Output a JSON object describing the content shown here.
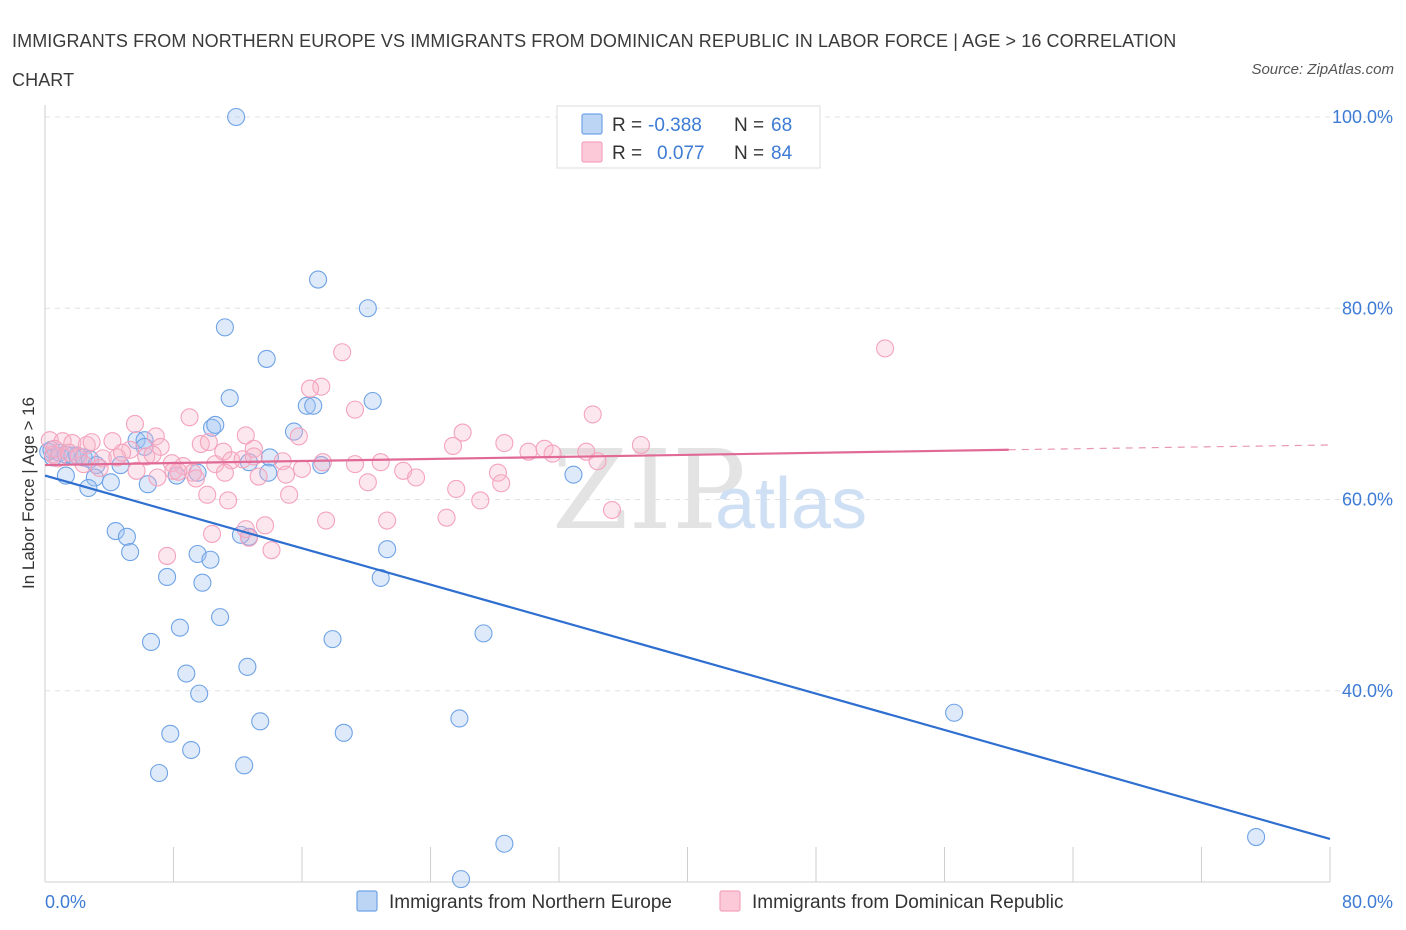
{
  "title": "IMMIGRANTS FROM NORTHERN EUROPE VS IMMIGRANTS FROM DOMINICAN REPUBLIC IN LABOR FORCE | AGE > 16 CORRELATION CHART",
  "source": "Source: ZipAtlas.com",
  "watermark": {
    "zip": "ZIP",
    "atlas": "atlas"
  },
  "colors": {
    "blue": "#6fa3e6",
    "blue_line": "#2f6fd0",
    "pink": "#f4a3bd",
    "pink_line": "#e06a95",
    "grid": "#e2e2e2",
    "axis_text": "#3d7bd4"
  },
  "legend": {
    "rows": [
      {
        "r_label": "R =",
        "r_value": "-0.388",
        "n_label": "N =",
        "n_value": "68"
      },
      {
        "r_label": "R =",
        "r_value": "0.077",
        "n_label": "N =",
        "n_value": "84"
      }
    ]
  },
  "chart_data": {
    "type": "scatter",
    "title": "IMMIGRANTS FROM NORTHERN EUROPE VS IMMIGRANTS FROM DOMINICAN REPUBLIC IN LABOR FORCE | AGE > 16 CORRELATION CHART",
    "xlabel": "",
    "ylabel": "In Labor Force | Age > 16",
    "xlim": [
      0,
      80
    ],
    "ylim": [
      20,
      100
    ],
    "x_tick_labels": [
      "0.0%",
      "80.0%"
    ],
    "y_ticks": [
      40,
      60,
      80,
      100
    ],
    "y_tick_labels": [
      "40.0%",
      "60.0%",
      "80.0%",
      "100.0%"
    ],
    "grid": true,
    "legend_position": "top-center",
    "series": [
      {
        "name": "Immigrants from Northern Europe",
        "color": "#6fa3e6",
        "trend": {
          "x": [
            0,
            80
          ],
          "y": [
            62.5,
            24.5
          ]
        },
        "points": [
          [
            11.9,
            100
          ],
          [
            17,
            83
          ],
          [
            20.1,
            80
          ],
          [
            11.2,
            78
          ],
          [
            13.8,
            74.7
          ],
          [
            11.5,
            70.6
          ],
          [
            16.3,
            69.8
          ],
          [
            16.7,
            69.8
          ],
          [
            20.4,
            70.3
          ],
          [
            10.4,
            67.5
          ],
          [
            10.6,
            67.8
          ],
          [
            15.5,
            67.1
          ],
          [
            5.7,
            66.2
          ],
          [
            6.2,
            66.2
          ],
          [
            6.2,
            65.5
          ],
          [
            0.2,
            65
          ],
          [
            0.4,
            65.2
          ],
          [
            0.5,
            64.4
          ],
          [
            0.9,
            64.9
          ],
          [
            1.3,
            64.7
          ],
          [
            1.7,
            64.6
          ],
          [
            2.0,
            64.6
          ],
          [
            2.4,
            64.4
          ],
          [
            2.8,
            64.2
          ],
          [
            3.2,
            63.6
          ],
          [
            4.7,
            63.6
          ],
          [
            12.7,
            63.9
          ],
          [
            14,
            64.4
          ],
          [
            17.2,
            63.6
          ],
          [
            13.9,
            62.8
          ],
          [
            1.3,
            62.5
          ],
          [
            3.1,
            62.3
          ],
          [
            4.1,
            61.8
          ],
          [
            6.4,
            61.6
          ],
          [
            2.7,
            61.2
          ],
          [
            8.2,
            62.5
          ],
          [
            9.5,
            62.8
          ],
          [
            32.9,
            62.6
          ],
          [
            4.4,
            56.7
          ],
          [
            5.1,
            56.1
          ],
          [
            12.7,
            56.1
          ],
          [
            5.3,
            54.5
          ],
          [
            9.5,
            54.3
          ],
          [
            10.3,
            53.7
          ],
          [
            21.3,
            54.8
          ],
          [
            7.6,
            51.9
          ],
          [
            9.8,
            51.3
          ],
          [
            20.9,
            51.8
          ],
          [
            10.9,
            47.7
          ],
          [
            8.4,
            46.6
          ],
          [
            6.6,
            45.1
          ],
          [
            17.9,
            45.4
          ],
          [
            27.3,
            46
          ],
          [
            8.8,
            41.8
          ],
          [
            12.6,
            42.5
          ],
          [
            9.6,
            39.7
          ],
          [
            7.8,
            35.5
          ],
          [
            13.4,
            36.8
          ],
          [
            18.6,
            35.6
          ],
          [
            25.8,
            37.1
          ],
          [
            9.1,
            33.8
          ],
          [
            7.1,
            31.4
          ],
          [
            12.4,
            32.2
          ],
          [
            56.6,
            37.7
          ],
          [
            28.6,
            24
          ],
          [
            75.4,
            24.7
          ],
          [
            25.9,
            20.3
          ],
          [
            12.2,
            56.3
          ]
        ]
      },
      {
        "name": "Immigrants from Dominican Republic",
        "color": "#f4a3bd",
        "trend": {
          "x": [
            0,
            60
          ],
          "y": [
            63.6,
            65.2
          ]
        },
        "dashed_extension": {
          "x": [
            60,
            80
          ],
          "y": [
            65.2,
            65.7
          ]
        },
        "points": [
          [
            52.3,
            75.8
          ],
          [
            18.5,
            75.4
          ],
          [
            17.2,
            71.8
          ],
          [
            16.5,
            71.6
          ],
          [
            19.3,
            69.4
          ],
          [
            34.1,
            68.9
          ],
          [
            9,
            68.6
          ],
          [
            5.6,
            67.9
          ],
          [
            26.0,
            67
          ],
          [
            6.9,
            66.6
          ],
          [
            12.5,
            66.7
          ],
          [
            15.8,
            66.6
          ],
          [
            0.3,
            66.2
          ],
          [
            1.1,
            66.1
          ],
          [
            1.7,
            65.9
          ],
          [
            2.6,
            65.7
          ],
          [
            2.9,
            66
          ],
          [
            4.2,
            66.1
          ],
          [
            5.3,
            65.2
          ],
          [
            7.2,
            65.5
          ],
          [
            9.7,
            65.8
          ],
          [
            10.2,
            66
          ],
          [
            11.1,
            65
          ],
          [
            13.0,
            65.3
          ],
          [
            25.4,
            65.6
          ],
          [
            28.6,
            65.9
          ],
          [
            30.1,
            65
          ],
          [
            31.1,
            65.3
          ],
          [
            33.7,
            65
          ],
          [
            37.1,
            65.7
          ],
          [
            0.5,
            64.7
          ],
          [
            0.8,
            64.3
          ],
          [
            1.5,
            64.9
          ],
          [
            2.1,
            64.5
          ],
          [
            3.6,
            64.3
          ],
          [
            4.5,
            64.4
          ],
          [
            6.3,
            64.5
          ],
          [
            7.9,
            63.8
          ],
          [
            8.6,
            63.5
          ],
          [
            10.6,
            63.7
          ],
          [
            11.6,
            64.1
          ],
          [
            12.3,
            64.2
          ],
          [
            14.8,
            64
          ],
          [
            17.3,
            63.9
          ],
          [
            19.3,
            63.7
          ],
          [
            20.9,
            63.9
          ],
          [
            34.4,
            64.0
          ],
          [
            3.4,
            63.3
          ],
          [
            5.7,
            63.0
          ],
          [
            8.0,
            63.0
          ],
          [
            9.2,
            62.8
          ],
          [
            11.2,
            62.8
          ],
          [
            13.3,
            62.4
          ],
          [
            15.0,
            62.6
          ],
          [
            22.3,
            63.0
          ],
          [
            23.1,
            62.3
          ],
          [
            28.2,
            62.8
          ],
          [
            7.0,
            62.3
          ],
          [
            9.4,
            62.2
          ],
          [
            20.1,
            61.8
          ],
          [
            28.4,
            61.7
          ],
          [
            25.6,
            61.1
          ],
          [
            10.1,
            60.5
          ],
          [
            15.2,
            60.5
          ],
          [
            11.4,
            59.9
          ],
          [
            27.1,
            59.9
          ],
          [
            35.3,
            58.9
          ],
          [
            17.5,
            57.8
          ],
          [
            21.3,
            57.8
          ],
          [
            25.0,
            58.1
          ],
          [
            12.5,
            56.9
          ],
          [
            13.7,
            57.3
          ],
          [
            12.7,
            56.0
          ],
          [
            10.4,
            56.4
          ],
          [
            7.6,
            54.1
          ],
          [
            14.1,
            54.7
          ],
          [
            0.6,
            65.3
          ],
          [
            2.4,
            63.7
          ],
          [
            4.8,
            64.9
          ],
          [
            6.7,
            64.7
          ],
          [
            16.0,
            63.2
          ],
          [
            31.6,
            64.8
          ],
          [
            13.0,
            64.5
          ],
          [
            8.3,
            62.9
          ]
        ]
      }
    ]
  },
  "bottom_legend": [
    {
      "label": "Immigrants from Northern Europe"
    },
    {
      "label": "Immigrants from Dominican Republic"
    }
  ]
}
